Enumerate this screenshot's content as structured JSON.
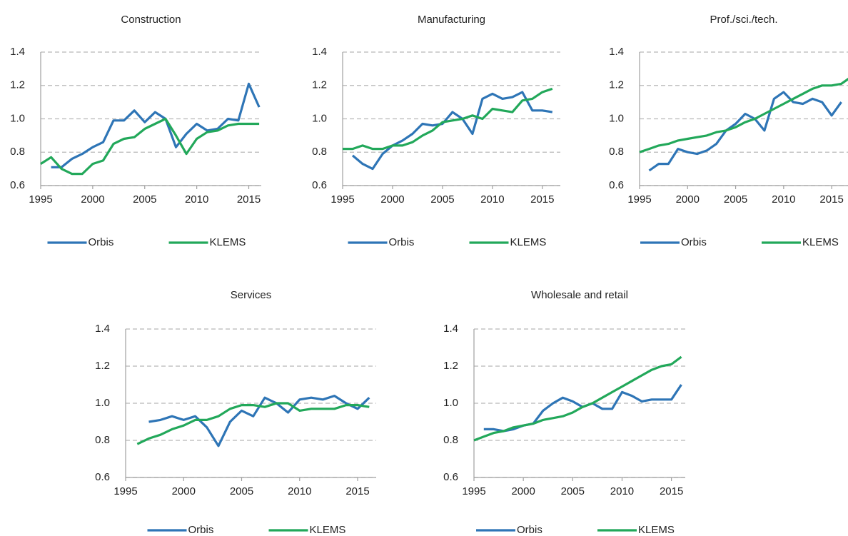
{
  "chart_data": [
    {
      "type": "line",
      "title": "Construction",
      "series": [
        {
          "name": "Orbis",
          "color": "#2e75b6",
          "x": [
            1996,
            1997,
            1998,
            1999,
            2000,
            2001,
            2002,
            2003,
            2004,
            2005,
            2006,
            2007,
            2008,
            2009,
            2010,
            2011,
            2012,
            2013,
            2014,
            2015,
            2016
          ],
          "values": [
            0.71,
            0.71,
            0.76,
            0.79,
            0.83,
            0.86,
            0.99,
            0.99,
            1.05,
            0.98,
            1.04,
            1.0,
            0.83,
            0.91,
            0.97,
            0.93,
            0.94,
            1.0,
            0.99,
            1.21,
            1.07
          ]
        },
        {
          "name": "KLEMS",
          "color": "#22a85a",
          "x": [
            1995,
            1996,
            1997,
            1998,
            1999,
            2000,
            2001,
            2002,
            2003,
            2004,
            2005,
            2006,
            2007,
            2008,
            2009,
            2010,
            2011,
            2012,
            2013,
            2014,
            2015,
            2016
          ],
          "values": [
            0.73,
            0.77,
            0.7,
            0.67,
            0.67,
            0.73,
            0.75,
            0.85,
            0.88,
            0.89,
            0.94,
            0.97,
            1.0,
            0.9,
            0.79,
            0.88,
            0.92,
            0.93,
            0.96,
            0.97,
            0.97,
            0.97
          ]
        }
      ],
      "xlim": [
        1995,
        2016.2
      ],
      "xticks": [
        1995,
        2000,
        2005,
        2010,
        2015
      ],
      "ylim": [
        0.6,
        1.4
      ],
      "yticks": [
        0.6,
        0.8,
        {
          "value": 1,
          "label": "1.0"
        },
        1.2,
        1.4
      ],
      "grid": true
    },
    {
      "type": "line",
      "title": "Manufacturing",
      "series": [
        {
          "name": "Orbis",
          "color": "#2e75b6",
          "x": [
            1996,
            1997,
            1998,
            1999,
            2000,
            2001,
            2002,
            2003,
            2004,
            2005,
            2006,
            2007,
            2008,
            2009,
            2010,
            2011,
            2012,
            2013,
            2014,
            2015,
            2016
          ],
          "values": [
            0.78,
            0.73,
            0.7,
            0.79,
            0.84,
            0.87,
            0.91,
            0.97,
            0.96,
            0.97,
            1.04,
            1.0,
            0.91,
            1.12,
            1.15,
            1.12,
            1.13,
            1.16,
            1.05,
            1.05,
            1.04
          ]
        },
        {
          "name": "KLEMS",
          "color": "#22a85a",
          "x": [
            1995,
            1996,
            1997,
            1998,
            1999,
            2000,
            2001,
            2002,
            2003,
            2004,
            2005,
            2006,
            2007,
            2008,
            2009,
            2010,
            2011,
            2012,
            2013,
            2014,
            2015,
            2016
          ],
          "values": [
            0.82,
            0.82,
            0.84,
            0.82,
            0.82,
            0.84,
            0.84,
            0.86,
            0.9,
            0.93,
            0.98,
            0.99,
            1.0,
            1.02,
            1.0,
            1.06,
            1.05,
            1.04,
            1.11,
            1.12,
            1.16,
            1.18
          ]
        }
      ],
      "xlim": [
        1995,
        2016.8
      ],
      "xticks": [
        1995,
        2000,
        2005,
        2010,
        2015
      ],
      "ylim": [
        0.6,
        1.4
      ],
      "yticks": [
        0.6,
        0.8,
        {
          "value": 1,
          "label": "1.0"
        },
        1.2,
        1.4
      ],
      "grid": true
    },
    {
      "type": "line",
      "title": "Prof./sci./tech.",
      "series": [
        {
          "name": "Orbis",
          "color": "#2e75b6",
          "x": [
            1996,
            1997,
            1998,
            1999,
            2000,
            2001,
            2002,
            2003,
            2004,
            2005,
            2006,
            2007,
            2008,
            2009,
            2010,
            2011,
            2012,
            2013,
            2014,
            2015,
            2016
          ],
          "values": [
            0.69,
            0.73,
            0.73,
            0.82,
            0.8,
            0.79,
            0.81,
            0.85,
            0.93,
            0.97,
            1.03,
            1.0,
            0.93,
            1.12,
            1.16,
            1.1,
            1.09,
            1.12,
            1.1,
            1.02,
            1.1
          ]
        },
        {
          "name": "KLEMS",
          "color": "#22a85a",
          "x": [
            1995,
            1996,
            1997,
            1998,
            1999,
            2000,
            2001,
            2002,
            2003,
            2004,
            2005,
            2006,
            2007,
            2008,
            2009,
            2010,
            2011,
            2012,
            2013,
            2014,
            2015,
            2016,
            2017
          ],
          "values": [
            0.8,
            0.82,
            0.84,
            0.85,
            0.87,
            0.88,
            0.89,
            0.9,
            0.92,
            0.93,
            0.95,
            0.98,
            1.0,
            1.03,
            1.06,
            1.09,
            1.12,
            1.15,
            1.18,
            1.2,
            1.2,
            1.21,
            1.25
          ]
        }
      ],
      "xlim": [
        1995,
        2016.7
      ],
      "xticks": [
        1995,
        2000,
        2005,
        2010,
        2015
      ],
      "ylim": [
        0.6,
        1.4
      ],
      "yticks": [
        0.6,
        0.8,
        {
          "value": 1,
          "label": "1.0"
        },
        1.2,
        1.4
      ],
      "grid": true
    },
    {
      "type": "line",
      "title": "Services",
      "series": [
        {
          "name": "Orbis",
          "color": "#2e75b6",
          "x": [
            1997,
            1998,
            1999,
            2000,
            2001,
            2002,
            2003,
            2004,
            2005,
            2006,
            2007,
            2008,
            2009,
            2010,
            2011,
            2012,
            2013,
            2014,
            2015,
            2016
          ],
          "values": [
            0.9,
            0.91,
            0.93,
            0.91,
            0.93,
            0.87,
            0.77,
            0.9,
            0.96,
            0.93,
            1.03,
            1.0,
            0.95,
            1.02,
            1.03,
            1.02,
            1.04,
            1.0,
            0.97,
            1.03
          ]
        },
        {
          "name": "KLEMS",
          "color": "#22a85a",
          "x": [
            1996,
            1997,
            1998,
            1999,
            2000,
            2001,
            2002,
            2003,
            2004,
            2005,
            2006,
            2007,
            2008,
            2009,
            2010,
            2011,
            2012,
            2013,
            2014,
            2015,
            2016
          ],
          "values": [
            0.78,
            0.81,
            0.83,
            0.86,
            0.88,
            0.91,
            0.91,
            0.93,
            0.97,
            0.99,
            0.99,
            0.98,
            1.0,
            1.0,
            0.96,
            0.97,
            0.97,
            0.97,
            0.99,
            0.99,
            0.98
          ]
        }
      ],
      "xlim": [
        1995,
        2016.6
      ],
      "xticks": [
        1995,
        2000,
        2005,
        2010,
        2015
      ],
      "ylim": [
        0.6,
        1.4
      ],
      "yticks": [
        0.6,
        0.8,
        {
          "value": 1,
          "label": "1.0"
        },
        1.2,
        1.4
      ],
      "grid": true
    },
    {
      "type": "line",
      "title": "Wholesale and retail",
      "series": [
        {
          "name": "Orbis",
          "color": "#2e75b6",
          "x": [
            1996,
            1997,
            1998,
            1999,
            2000,
            2001,
            2002,
            2003,
            2004,
            2005,
            2006,
            2007,
            2008,
            2009,
            2010,
            2011,
            2012,
            2013,
            2014,
            2015,
            2016
          ],
          "values": [
            0.86,
            0.86,
            0.85,
            0.86,
            0.88,
            0.89,
            0.96,
            1.0,
            1.03,
            1.01,
            0.98,
            1.0,
            0.97,
            0.97,
            1.06,
            1.04,
            1.01,
            1.02,
            1.02,
            1.02,
            1.1
          ]
        },
        {
          "name": "KLEMS",
          "color": "#22a85a",
          "x": [
            1995,
            1996,
            1997,
            1998,
            1999,
            2000,
            2001,
            2002,
            2003,
            2004,
            2005,
            2006,
            2007,
            2008,
            2009,
            2010,
            2011,
            2012,
            2013,
            2014,
            2015,
            2016
          ],
          "values": [
            0.8,
            0.82,
            0.84,
            0.85,
            0.87,
            0.88,
            0.89,
            0.91,
            0.92,
            0.93,
            0.95,
            0.98,
            1.0,
            1.03,
            1.06,
            1.09,
            1.12,
            1.15,
            1.18,
            1.2,
            1.21,
            1.25
          ]
        }
      ],
      "xlim": [
        1995,
        2016.4
      ],
      "xticks": [
        1995,
        2000,
        2005,
        2010,
        2015
      ],
      "ylim": [
        0.6,
        1.4
      ],
      "yticks": [
        0.6,
        0.8,
        {
          "value": 1,
          "label": "1.0"
        },
        1.2,
        1.4
      ],
      "grid": true
    }
  ]
}
